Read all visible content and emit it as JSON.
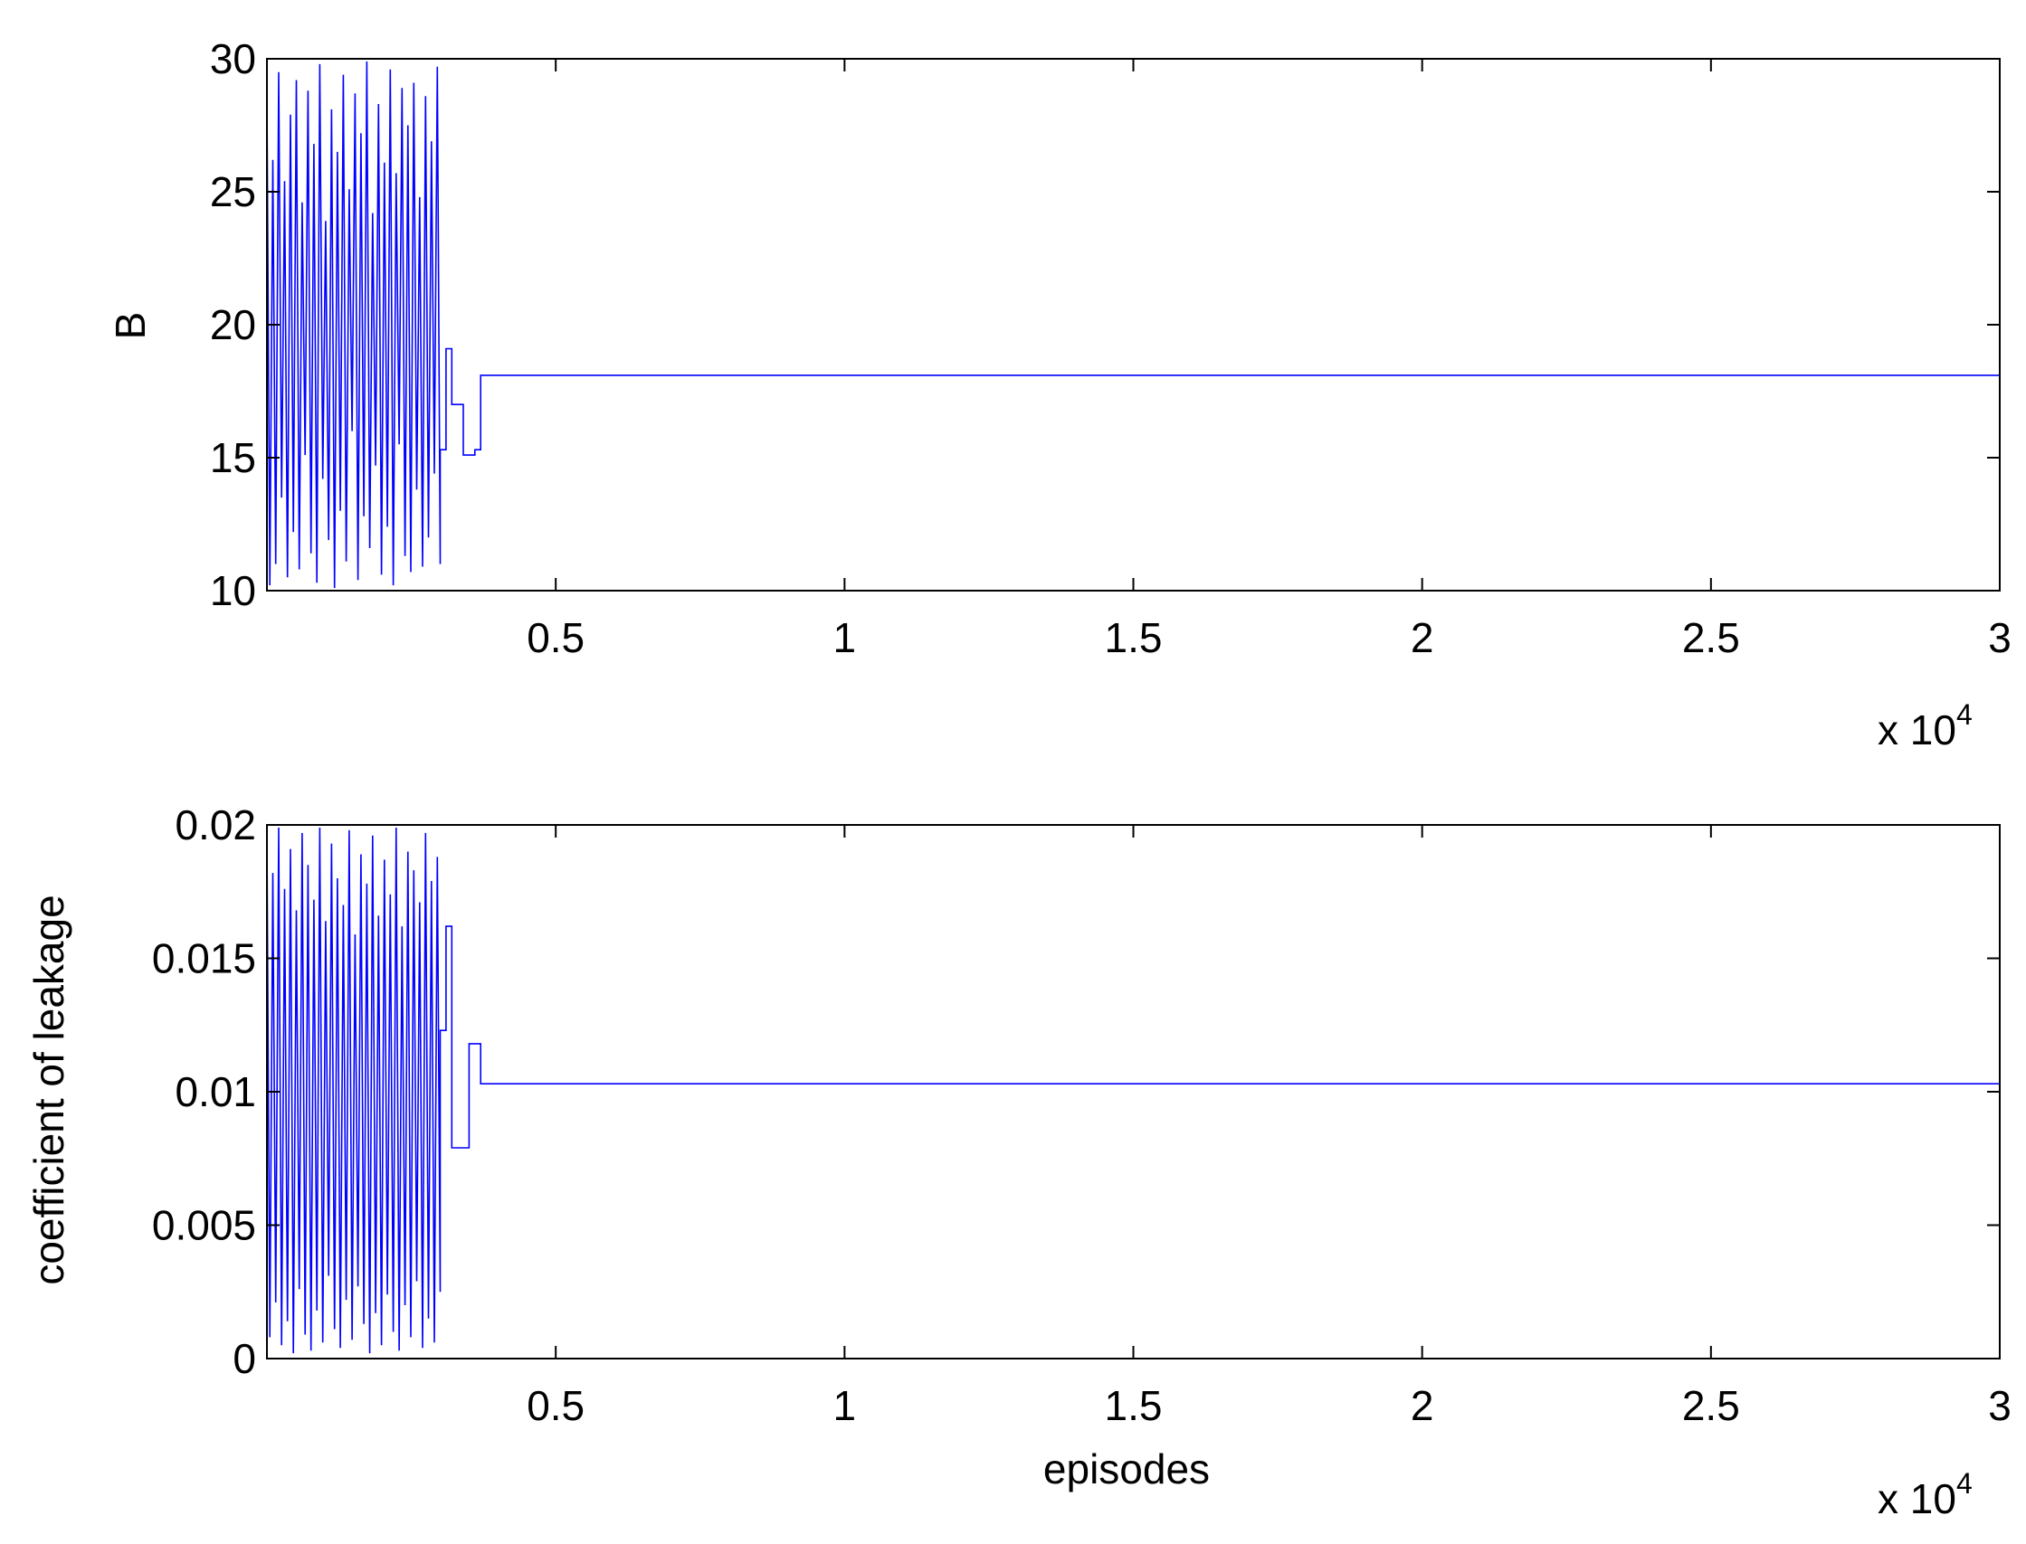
{
  "chart_data": [
    {
      "type": "line",
      "title": "",
      "xlabel": "",
      "ylabel": "B",
      "xlim": [
        0,
        30000
      ],
      "ylim": [
        10,
        30
      ],
      "xtick_values": [
        5000,
        10000,
        15000,
        20000,
        25000,
        30000
      ],
      "xtick_labels": [
        "0.5",
        "1",
        "1.5",
        "2",
        "2.5",
        "3"
      ],
      "ytick_values": [
        10,
        15,
        20,
        25,
        30
      ],
      "ytick_labels": [
        "10",
        "15",
        "20",
        "25",
        "30"
      ],
      "x_exponent_base": "x 10",
      "x_exponent_power": "4",
      "grid": false,
      "line_color": "#0000ff",
      "series": [
        {
          "osc_x_start": 0,
          "osc_x_end": 3000,
          "osc_values": [
            28.5,
            10.2,
            26.2,
            11.0,
            29.5,
            13.5,
            25.4,
            10.5,
            27.9,
            12.2,
            29.2,
            10.8,
            24.6,
            15.1,
            28.8,
            11.4,
            26.8,
            10.3,
            29.8,
            14.2,
            23.9,
            11.9,
            28.1,
            10.1,
            26.5,
            13.0,
            29.4,
            11.1,
            25.1,
            16.0,
            28.7,
            10.4,
            27.2,
            12.8,
            29.9,
            11.6,
            24.2,
            14.7,
            28.3,
            10.6,
            26.1,
            12.4,
            29.6,
            10.2,
            25.7,
            15.5,
            28.9,
            11.3,
            27.5,
            10.7,
            29.1,
            13.8,
            24.8,
            10.9,
            28.6,
            12.0,
            26.9,
            14.4,
            29.7,
            11.0
          ],
          "step_x": [
            3000,
            3100,
            3200,
            3400,
            3600,
            3700,
            30000
          ],
          "step_y": [
            15.3,
            19.1,
            17.0,
            15.1,
            15.3,
            18.1,
            18.1
          ]
        }
      ]
    },
    {
      "type": "line",
      "title": "",
      "xlabel": "episodes",
      "ylabel": "coefficient of leakage",
      "xlim": [
        0,
        30000
      ],
      "ylim": [
        0,
        0.02
      ],
      "xtick_values": [
        5000,
        10000,
        15000,
        20000,
        25000,
        30000
      ],
      "xtick_labels": [
        "0.5",
        "1",
        "1.5",
        "2",
        "2.5",
        "3"
      ],
      "ytick_values": [
        0,
        0.005,
        0.01,
        0.015,
        0.02
      ],
      "ytick_labels": [
        "0",
        "0.005",
        "0.01",
        "0.015",
        "0.02"
      ],
      "x_exponent_base": "x 10",
      "x_exponent_power": "4",
      "grid": false,
      "line_color": "#0000ff",
      "series": [
        {
          "osc_x_start": 0,
          "osc_x_end": 3000,
          "osc_values": [
            0.0195,
            0.0008,
            0.0182,
            0.0021,
            0.0199,
            0.0005,
            0.0176,
            0.0014,
            0.0191,
            0.0002,
            0.0168,
            0.0026,
            0.0197,
            0.0009,
            0.0185,
            0.0003,
            0.0172,
            0.0018,
            0.0199,
            0.0006,
            0.0164,
            0.0031,
            0.0193,
            0.0011,
            0.018,
            0.0004,
            0.017,
            0.0022,
            0.0198,
            0.0007,
            0.0159,
            0.0027,
            0.0189,
            0.0013,
            0.0178,
            0.0002,
            0.0196,
            0.0017,
            0.0166,
            0.0005,
            0.0187,
            0.0024,
            0.0174,
            0.001,
            0.0199,
            0.0003,
            0.0162,
            0.002,
            0.019,
            0.0008,
            0.0183,
            0.0029,
            0.0171,
            0.0004,
            0.0197,
            0.0015,
            0.0179,
            0.0006,
            0.0188,
            0.0025
          ],
          "step_x": [
            3000,
            3100,
            3200,
            3300,
            3500,
            3700,
            30000
          ],
          "step_y": [
            0.0123,
            0.0162,
            0.0079,
            0.0079,
            0.0118,
            0.0103,
            0.0103
          ]
        }
      ]
    }
  ]
}
